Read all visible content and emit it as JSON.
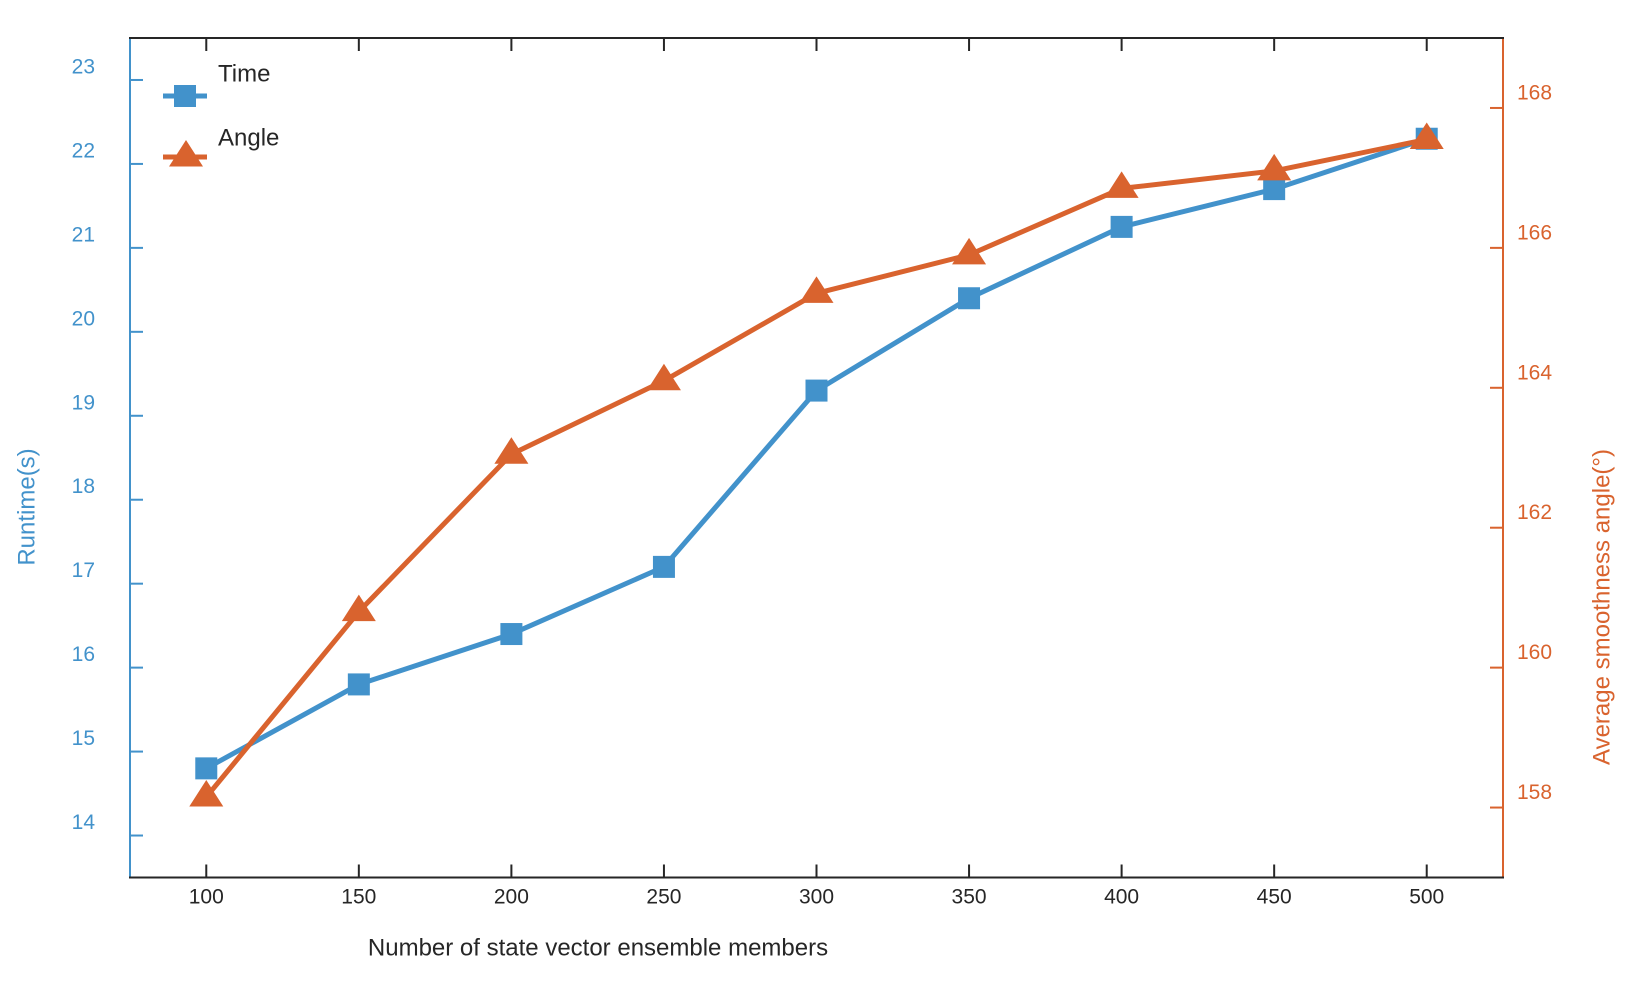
{
  "chart_data": {
    "type": "line",
    "title": "",
    "xlabel": "Number of state vector ensemble members",
    "ylabel_left": "Runtime(s)",
    "ylabel_right": "Average smoothness angle(°)",
    "x": [
      100,
      150,
      200,
      250,
      300,
      350,
      400,
      450,
      500
    ],
    "series": [
      {
        "name": "Time",
        "axis": "left",
        "marker": "square",
        "color": "#4292CB",
        "values": [
          14.8,
          15.8,
          16.4,
          17.2,
          19.3,
          20.4,
          21.25,
          21.7,
          22.3
        ]
      },
      {
        "name": "Angle",
        "axis": "right",
        "marker": "triangle",
        "color": "#D9632E",
        "values": [
          158.15,
          160.8,
          163.05,
          164.1,
          165.35,
          165.9,
          166.85,
          167.1,
          167.55
        ]
      }
    ],
    "x_ticks": [
      100,
      150,
      200,
      250,
      300,
      350,
      400,
      450,
      500
    ],
    "y_left_ticks": [
      14,
      15,
      16,
      17,
      18,
      19,
      20,
      21,
      22,
      23
    ],
    "y_right_ticks": [
      158,
      160,
      162,
      164,
      166,
      168
    ],
    "xlim": [
      75,
      525
    ],
    "ylim_left": [
      13.5,
      23.5
    ],
    "ylim_right": [
      157,
      169
    ],
    "grid": false,
    "legend_position": "top-left-inside",
    "legend": [
      {
        "label": "Time"
      },
      {
        "label": "Angle"
      }
    ]
  },
  "colors": {
    "time_blue": "#4292CB",
    "angle_orange": "#D9632E",
    "axis_dark": "#262626",
    "background": "#FFFFFF"
  }
}
